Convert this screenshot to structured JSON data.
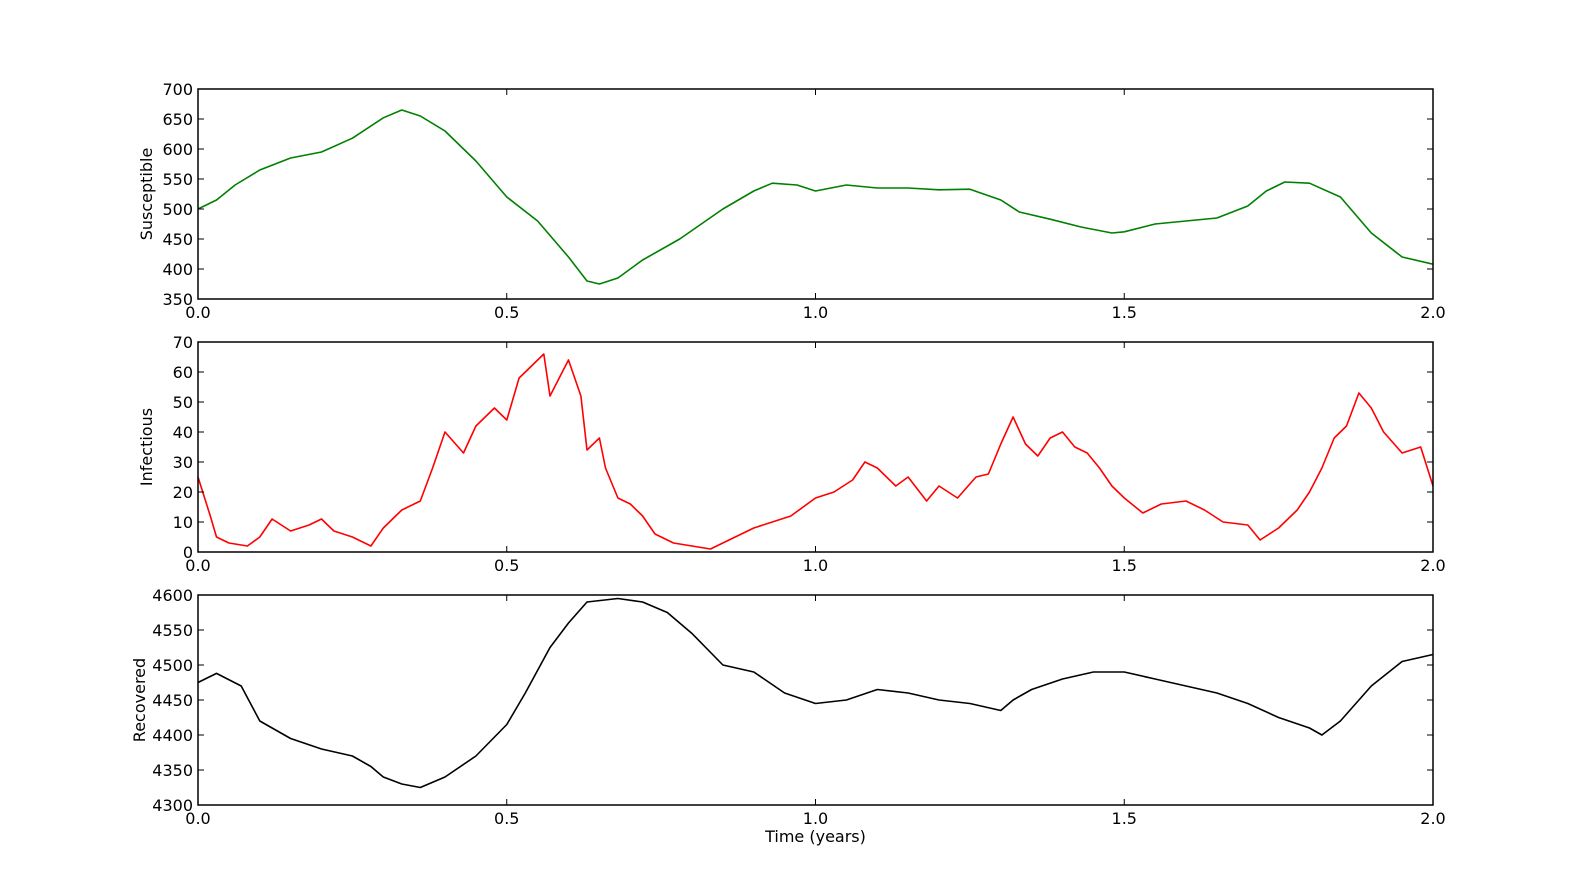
{
  "chart_data": [
    {
      "type": "line",
      "ylabel": "Susceptible",
      "xlabel": "",
      "xlim": [
        0.0,
        2.0
      ],
      "ylim": [
        350,
        700
      ],
      "xticks": [
        "0.0",
        "0.5",
        "1.0",
        "1.5",
        "2.0"
      ],
      "yticks": [
        "350",
        "400",
        "450",
        "500",
        "550",
        "600",
        "650",
        "700"
      ],
      "grid": false,
      "series": [
        {
          "color": "#008000",
          "x": [
            0.0,
            0.03,
            0.06,
            0.1,
            0.15,
            0.2,
            0.25,
            0.3,
            0.33,
            0.36,
            0.4,
            0.45,
            0.5,
            0.55,
            0.6,
            0.63,
            0.65,
            0.68,
            0.72,
            0.78,
            0.85,
            0.9,
            0.93,
            0.97,
            1.0,
            1.05,
            1.1,
            1.15,
            1.2,
            1.25,
            1.3,
            1.33,
            1.38,
            1.43,
            1.48,
            1.5,
            1.55,
            1.6,
            1.65,
            1.7,
            1.73,
            1.76,
            1.8,
            1.85,
            1.9,
            1.95,
            2.0
          ],
          "y": [
            500,
            515,
            540,
            565,
            585,
            595,
            618,
            652,
            665,
            655,
            630,
            580,
            520,
            480,
            420,
            380,
            375,
            385,
            415,
            450,
            500,
            530,
            543,
            540,
            530,
            540,
            535,
            535,
            532,
            533,
            515,
            495,
            483,
            470,
            460,
            462,
            475,
            480,
            485,
            505,
            530,
            545,
            543,
            520,
            460,
            420,
            408
          ]
        }
      ]
    },
    {
      "type": "line",
      "ylabel": "Infectious",
      "xlabel": "",
      "xlim": [
        0.0,
        2.0
      ],
      "ylim": [
        0,
        70
      ],
      "xticks": [
        "0.0",
        "0.5",
        "1.0",
        "1.5",
        "2.0"
      ],
      "yticks": [
        "0",
        "10",
        "20",
        "30",
        "40",
        "50",
        "60",
        "70"
      ],
      "grid": false,
      "series": [
        {
          "color": "#ff0000",
          "x": [
            0.0,
            0.02,
            0.03,
            0.05,
            0.08,
            0.1,
            0.12,
            0.15,
            0.18,
            0.2,
            0.22,
            0.25,
            0.28,
            0.3,
            0.33,
            0.36,
            0.38,
            0.4,
            0.43,
            0.45,
            0.48,
            0.5,
            0.52,
            0.54,
            0.56,
            0.57,
            0.59,
            0.6,
            0.62,
            0.63,
            0.65,
            0.66,
            0.68,
            0.7,
            0.72,
            0.74,
            0.77,
            0.8,
            0.83,
            0.86,
            0.9,
            0.93,
            0.96,
            1.0,
            1.03,
            1.06,
            1.08,
            1.1,
            1.13,
            1.15,
            1.18,
            1.2,
            1.23,
            1.26,
            1.28,
            1.3,
            1.32,
            1.34,
            1.36,
            1.38,
            1.4,
            1.42,
            1.44,
            1.46,
            1.48,
            1.5,
            1.53,
            1.56,
            1.6,
            1.63,
            1.66,
            1.7,
            1.72,
            1.75,
            1.78,
            1.8,
            1.82,
            1.84,
            1.86,
            1.88,
            1.9,
            1.92,
            1.95,
            1.98,
            2.0
          ],
          "y": [
            25,
            12,
            5,
            3,
            2,
            5,
            11,
            7,
            9,
            11,
            7,
            5,
            2,
            8,
            14,
            17,
            28,
            40,
            33,
            42,
            48,
            44,
            58,
            62,
            66,
            52,
            60,
            64,
            52,
            34,
            38,
            28,
            18,
            16,
            12,
            6,
            3,
            2,
            1,
            4,
            8,
            10,
            12,
            18,
            20,
            24,
            30,
            28,
            22,
            25,
            17,
            22,
            18,
            25,
            26,
            36,
            45,
            36,
            32,
            38,
            40,
            35,
            33,
            28,
            22,
            18,
            13,
            16,
            17,
            14,
            10,
            9,
            4,
            8,
            14,
            20,
            28,
            38,
            42,
            53,
            48,
            40,
            33,
            35,
            22
          ]
        }
      ]
    },
    {
      "type": "line",
      "ylabel": "Recovered",
      "xlabel": "Time (years)",
      "xlim": [
        0.0,
        2.0
      ],
      "ylim": [
        4300,
        4600
      ],
      "xticks": [
        "0.0",
        "0.5",
        "1.0",
        "1.5",
        "2.0"
      ],
      "yticks": [
        "4300",
        "4350",
        "4400",
        "4450",
        "4500",
        "4550",
        "4600"
      ],
      "grid": false,
      "series": [
        {
          "color": "#000000",
          "x": [
            0.0,
            0.03,
            0.07,
            0.1,
            0.15,
            0.2,
            0.25,
            0.28,
            0.3,
            0.33,
            0.36,
            0.4,
            0.45,
            0.5,
            0.53,
            0.57,
            0.6,
            0.63,
            0.68,
            0.72,
            0.76,
            0.8,
            0.85,
            0.9,
            0.95,
            1.0,
            1.05,
            1.1,
            1.15,
            1.2,
            1.25,
            1.3,
            1.32,
            1.35,
            1.4,
            1.45,
            1.5,
            1.55,
            1.6,
            1.65,
            1.7,
            1.75,
            1.8,
            1.82,
            1.85,
            1.9,
            1.95,
            2.0
          ],
          "y": [
            4475,
            4488,
            4470,
            4420,
            4395,
            4380,
            4370,
            4355,
            4340,
            4330,
            4325,
            4340,
            4370,
            4415,
            4460,
            4525,
            4560,
            4590,
            4595,
            4590,
            4575,
            4545,
            4500,
            4490,
            4460,
            4445,
            4450,
            4465,
            4460,
            4450,
            4445,
            4435,
            4450,
            4465,
            4480,
            4490,
            4490,
            4480,
            4470,
            4460,
            4445,
            4425,
            4410,
            4400,
            4420,
            4470,
            4505,
            4515
          ]
        }
      ]
    }
  ]
}
